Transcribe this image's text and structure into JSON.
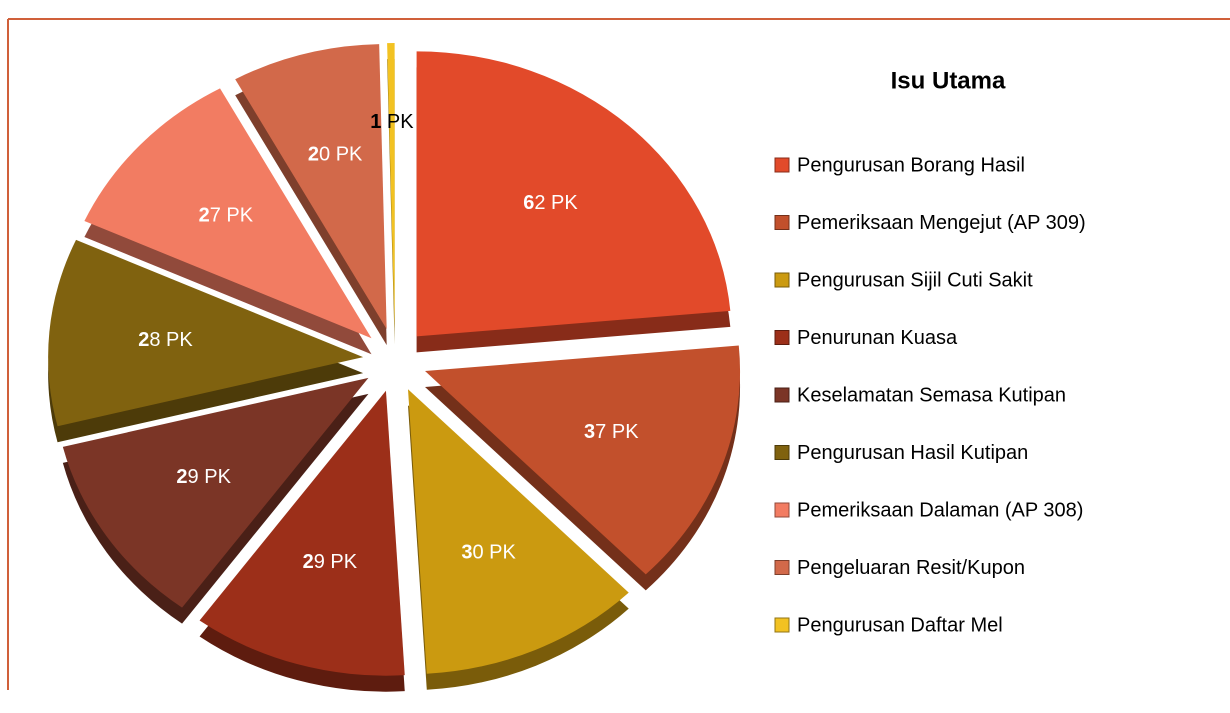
{
  "chart_data": {
    "type": "pie",
    "legend_title": "Isu Utama",
    "legend": "right",
    "categories": [
      "Pengurusan Borang Hasil",
      "Pemeriksaan Mengejut (AP 309)",
      "Pengurusan Sijil Cuti Sakit",
      "Penurunan Kuasa",
      "Keselamatan Semasa Kutipan",
      "Pengurusan Hasil Kutipan",
      "Pemeriksaan Dalaman (AP 308)",
      "Pengeluaran Resit/Kupon",
      "Pengurusan Daftar Mel"
    ],
    "values": [
      62,
      37,
      30,
      29,
      29,
      28,
      27,
      20,
      1
    ],
    "value_labels": [
      "62 PK",
      "37 PK",
      "30 PK",
      "29 PK",
      "29 PK",
      "28 PK",
      "27 PK",
      "20 PK",
      "1 PK"
    ],
    "colors": [
      "#e24a2a",
      "#c2502c",
      "#cb9a10",
      "#9c2f19",
      "#7b3526",
      "#80620f",
      "#f27c62",
      "#d2694a",
      "#f2c222"
    ]
  }
}
